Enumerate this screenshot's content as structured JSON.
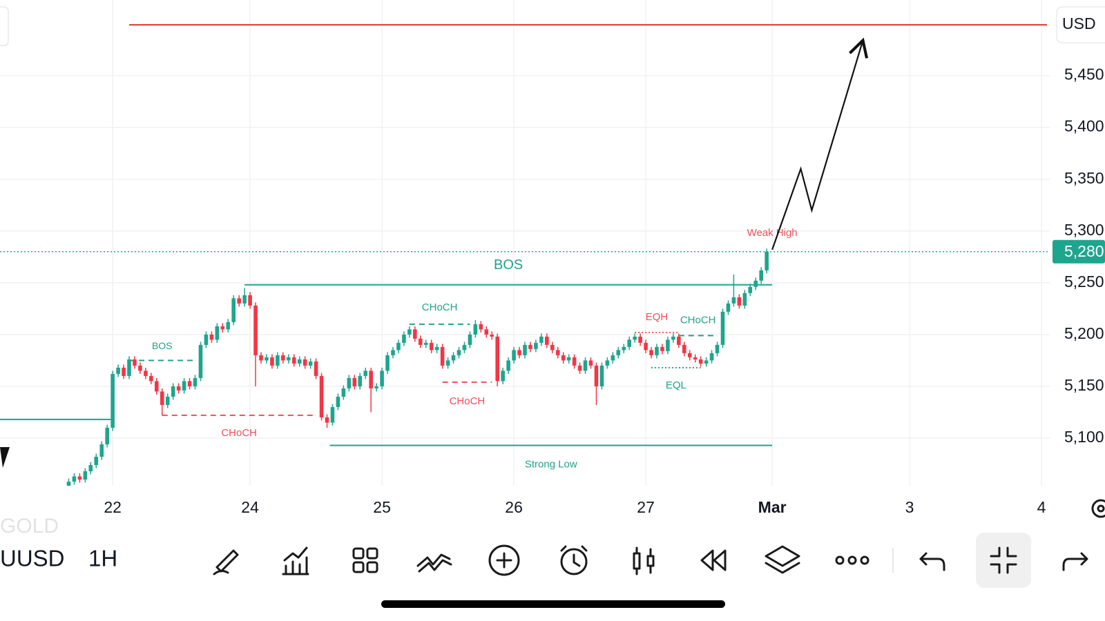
{
  "chart_data": {
    "type": "candlestick",
    "currency": "USD",
    "colors": {
      "up": "#1ea58e",
      "down": "#f23645"
    },
    "grid": true,
    "xlim": [
      -0.5,
      190.5
    ],
    "ylim": [
      5054,
      5523
    ],
    "xticks": [
      {
        "value": 20,
        "label": "22"
      },
      {
        "value": 45,
        "label": "24"
      },
      {
        "value": 69,
        "label": "25"
      },
      {
        "value": 93,
        "label": "26"
      },
      {
        "value": 117,
        "label": "27"
      },
      {
        "value": 140,
        "label": "Mar"
      },
      {
        "value": 165,
        "label": "3"
      },
      {
        "value": 189,
        "label": "4"
      }
    ],
    "yticks": [
      {
        "value": 5100,
        "label": "5,100"
      },
      {
        "value": 5150,
        "label": "5,150"
      },
      {
        "value": 5200,
        "label": "5,200"
      },
      {
        "value": 5250,
        "label": "5,250"
      },
      {
        "value": 5300,
        "label": "5,300"
      },
      {
        "value": 5350,
        "label": "5,350"
      },
      {
        "value": 5400,
        "label": "5,400"
      },
      {
        "value": 5450,
        "label": "5,450"
      }
    ],
    "last_price": {
      "value": 5280,
      "label": "5,280"
    },
    "x": [
      12,
      13,
      14,
      15,
      16,
      17,
      18,
      19,
      20,
      21,
      22,
      23,
      24,
      25,
      26,
      27,
      28,
      29,
      30,
      31,
      32,
      33,
      34,
      35,
      36,
      37,
      38,
      39,
      40,
      41,
      42,
      43,
      44,
      45,
      46,
      47,
      48,
      49,
      50,
      51,
      52,
      53,
      54,
      55,
      56,
      57,
      58,
      59,
      60,
      61,
      62,
      63,
      64,
      65,
      66,
      67,
      68,
      69,
      70,
      71,
      72,
      73,
      74,
      75,
      76,
      77,
      78,
      79,
      80,
      81,
      82,
      83,
      84,
      85,
      86,
      87,
      88,
      89,
      90,
      91,
      92,
      93,
      94,
      95,
      96,
      97,
      98,
      99,
      100,
      101,
      102,
      103,
      104,
      105,
      106,
      107,
      108,
      109,
      110,
      111,
      112,
      113,
      114,
      115,
      116,
      117,
      118,
      119,
      120,
      121,
      122,
      123,
      124,
      125,
      126,
      127,
      128,
      129,
      130,
      131,
      132,
      133,
      134,
      135,
      136,
      137,
      138,
      139
    ],
    "ohlc": [
      [
        5054,
        5061,
        5051,
        5058
      ],
      [
        5058,
        5066,
        5055,
        5063
      ],
      [
        5063,
        5066,
        5057,
        5060
      ],
      [
        5060,
        5071,
        5057,
        5068
      ],
      [
        5068,
        5077,
        5065,
        5074
      ],
      [
        5074,
        5085,
        5071,
        5082
      ],
      [
        5082,
        5097,
        5079,
        5094
      ],
      [
        5094,
        5113,
        5091,
        5110
      ],
      [
        5110,
        5165,
        5107,
        5162
      ],
      [
        5162,
        5171,
        5159,
        5168
      ],
      [
        5168,
        5171,
        5157,
        5160
      ],
      [
        5160,
        5179,
        5157,
        5176
      ],
      [
        5176,
        5179,
        5167,
        5170
      ],
      [
        5170,
        5173,
        5162,
        5165
      ],
      [
        5165,
        5168,
        5157,
        5160
      ],
      [
        5160,
        5163,
        5152,
        5155
      ],
      [
        5155,
        5158,
        5142,
        5145
      ],
      [
        5145,
        5148,
        5122,
        5132
      ],
      [
        5132,
        5143,
        5129,
        5140
      ],
      [
        5140,
        5153,
        5137,
        5150
      ],
      [
        5150,
        5153,
        5143,
        5146
      ],
      [
        5146,
        5158,
        5143,
        5155
      ],
      [
        5155,
        5158,
        5147,
        5150
      ],
      [
        5150,
        5161,
        5147,
        5158
      ],
      [
        5158,
        5193,
        5155,
        5190
      ],
      [
        5190,
        5203,
        5187,
        5200
      ],
      [
        5200,
        5203,
        5192,
        5195
      ],
      [
        5195,
        5211,
        5192,
        5208
      ],
      [
        5208,
        5211,
        5202,
        5205
      ],
      [
        5205,
        5215,
        5202,
        5212
      ],
      [
        5212,
        5238,
        5209,
        5235
      ],
      [
        5235,
        5238,
        5227,
        5230
      ],
      [
        5230,
        5245,
        5227,
        5238
      ],
      [
        5238,
        5241,
        5225,
        5228
      ],
      [
        5228,
        5231,
        5150,
        5180
      ],
      [
        5180,
        5183,
        5172,
        5175
      ],
      [
        5175,
        5181,
        5172,
        5178
      ],
      [
        5178,
        5181,
        5167,
        5170
      ],
      [
        5170,
        5183,
        5167,
        5180
      ],
      [
        5180,
        5183,
        5172,
        5175
      ],
      [
        5175,
        5181,
        5172,
        5178
      ],
      [
        5178,
        5181,
        5169,
        5172
      ],
      [
        5172,
        5179,
        5169,
        5176
      ],
      [
        5176,
        5179,
        5167,
        5170
      ],
      [
        5170,
        5177,
        5167,
        5174
      ],
      [
        5174,
        5177,
        5157,
        5160
      ],
      [
        5160,
        5163,
        5117,
        5120
      ],
      [
        5120,
        5123,
        5110,
        5115
      ],
      [
        5115,
        5133,
        5112,
        5130
      ],
      [
        5130,
        5143,
        5127,
        5140
      ],
      [
        5140,
        5151,
        5137,
        5148
      ],
      [
        5148,
        5161,
        5145,
        5158
      ],
      [
        5158,
        5161,
        5147,
        5150
      ],
      [
        5150,
        5163,
        5147,
        5160
      ],
      [
        5160,
        5168,
        5157,
        5165
      ],
      [
        5165,
        5168,
        5125,
        5148
      ],
      [
        5148,
        5153,
        5145,
        5150
      ],
      [
        5150,
        5168,
        5147,
        5165
      ],
      [
        5165,
        5183,
        5162,
        5180
      ],
      [
        5180,
        5188,
        5177,
        5185
      ],
      [
        5185,
        5195,
        5182,
        5192
      ],
      [
        5192,
        5203,
        5189,
        5200
      ],
      [
        5200,
        5208,
        5197,
        5205
      ],
      [
        5205,
        5208,
        5193,
        5196
      ],
      [
        5196,
        5199,
        5187,
        5190
      ],
      [
        5190,
        5195,
        5187,
        5192
      ],
      [
        5192,
        5195,
        5182,
        5185
      ],
      [
        5185,
        5191,
        5182,
        5188
      ],
      [
        5188,
        5191,
        5167,
        5170
      ],
      [
        5170,
        5178,
        5167,
        5175
      ],
      [
        5175,
        5183,
        5172,
        5180
      ],
      [
        5180,
        5188,
        5177,
        5185
      ],
      [
        5185,
        5193,
        5182,
        5190
      ],
      [
        5190,
        5203,
        5187,
        5200
      ],
      [
        5200,
        5214,
        5197,
        5210
      ],
      [
        5210,
        5213,
        5202,
        5205
      ],
      [
        5205,
        5208,
        5197,
        5200
      ],
      [
        5200,
        5203,
        5195,
        5198
      ],
      [
        5198,
        5201,
        5150,
        5155
      ],
      [
        5155,
        5168,
        5152,
        5165
      ],
      [
        5165,
        5178,
        5162,
        5175
      ],
      [
        5175,
        5188,
        5172,
        5185
      ],
      [
        5185,
        5188,
        5177,
        5180
      ],
      [
        5180,
        5193,
        5177,
        5190
      ],
      [
        5190,
        5193,
        5183,
        5186
      ],
      [
        5186,
        5195,
        5183,
        5192
      ],
      [
        5192,
        5201,
        5189,
        5198
      ],
      [
        5198,
        5201,
        5187,
        5190
      ],
      [
        5190,
        5193,
        5182,
        5185
      ],
      [
        5185,
        5188,
        5177,
        5180
      ],
      [
        5180,
        5183,
        5172,
        5175
      ],
      [
        5175,
        5181,
        5172,
        5178
      ],
      [
        5178,
        5181,
        5167,
        5170
      ],
      [
        5170,
        5173,
        5162,
        5165
      ],
      [
        5165,
        5178,
        5162,
        5175
      ],
      [
        5175,
        5178,
        5167,
        5170
      ],
      [
        5170,
        5173,
        5132,
        5150
      ],
      [
        5150,
        5173,
        5147,
        5170
      ],
      [
        5170,
        5178,
        5167,
        5175
      ],
      [
        5175,
        5183,
        5172,
        5180
      ],
      [
        5180,
        5188,
        5177,
        5185
      ],
      [
        5185,
        5191,
        5182,
        5188
      ],
      [
        5188,
        5198,
        5185,
        5195
      ],
      [
        5195,
        5201,
        5192,
        5198
      ],
      [
        5198,
        5201,
        5189,
        5192
      ],
      [
        5192,
        5195,
        5182,
        5185
      ],
      [
        5185,
        5188,
        5177,
        5180
      ],
      [
        5180,
        5191,
        5177,
        5188
      ],
      [
        5188,
        5191,
        5181,
        5184
      ],
      [
        5184,
        5198,
        5181,
        5195
      ],
      [
        5195,
        5201,
        5192,
        5198
      ],
      [
        5198,
        5201,
        5187,
        5190
      ],
      [
        5190,
        5193,
        5179,
        5182
      ],
      [
        5182,
        5185,
        5175,
        5178
      ],
      [
        5178,
        5181,
        5173,
        5176
      ],
      [
        5176,
        5179,
        5169,
        5172
      ],
      [
        5172,
        5178,
        5169,
        5175
      ],
      [
        5175,
        5185,
        5172,
        5182
      ],
      [
        5182,
        5193,
        5179,
        5190
      ],
      [
        5190,
        5225,
        5187,
        5222
      ],
      [
        5222,
        5233,
        5219,
        5230
      ],
      [
        5230,
        5258,
        5227,
        5236
      ],
      [
        5236,
        5239,
        5225,
        5228
      ],
      [
        5228,
        5243,
        5225,
        5240
      ],
      [
        5240,
        5249,
        5237,
        5246
      ],
      [
        5246,
        5255,
        5243,
        5252
      ],
      [
        5252,
        5265,
        5249,
        5262
      ],
      [
        5262,
        5283,
        5259,
        5280
      ]
    ],
    "annotations": [
      {
        "label": "BOS",
        "price": 5248,
        "x": [
          44,
          140
        ],
        "color": "#1fa28b",
        "style": "solid"
      },
      {
        "label": "BOS",
        "price": 5175,
        "x": [
          23,
          35
        ],
        "color": "#1fa28b",
        "style": "dashed"
      },
      {
        "label": "CHoCH",
        "price": 5122,
        "x": [
          29,
          57
        ],
        "color": "#ef4d5c",
        "style": "dashed"
      },
      {
        "label": "CHoCH",
        "price": 5210,
        "x": [
          74,
          85
        ],
        "color": "#1fa28b",
        "style": "dashed"
      },
      {
        "label": "CHoCH",
        "price": 5154,
        "x": [
          80,
          89
        ],
        "color": "#ef4d5c",
        "style": "dashed"
      },
      {
        "label": "EQH",
        "price": 5202,
        "x": [
          115,
          123
        ],
        "color": "#ef4d5c",
        "style": "dotted"
      },
      {
        "label": "CHoCH",
        "price": 5199,
        "x": [
          123,
          130
        ],
        "color": "#1fa28b",
        "style": "dashed"
      },
      {
        "label": "EQL",
        "price": 5168,
        "x": [
          118,
          127
        ],
        "color": "#1fa28b",
        "style": "dotted"
      },
      {
        "label": "Strong Low",
        "price": 5093,
        "x": [
          59.5,
          140
        ],
        "color": "#1fa28b",
        "style": "solid"
      },
      {
        "label": "Weak High",
        "price": 5283,
        "x": [
          140
        ],
        "color": "#ef4d5c"
      },
      {
        "price": 5118,
        "x": [
          -0.5,
          20
        ],
        "color": "#1fa28b",
        "style": "solid"
      }
    ],
    "target_line": {
      "price": 5499,
      "x": [
        23,
        190
      ],
      "color": "#e53935"
    },
    "projection": {
      "x": [
        140,
        145.2,
        147.2,
        156.5
      ],
      "y": [
        5282,
        5360,
        5320,
        5484
      ]
    }
  },
  "toolbar": {
    "exchange": "GOLD",
    "symbol": "UUSD",
    "interval": "1H"
  }
}
